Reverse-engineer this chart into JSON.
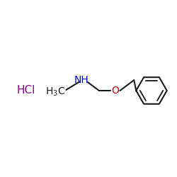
{
  "background_color": "#ffffff",
  "hcl_text": "HCl",
  "hcl_color": "#8B008B",
  "hcl_fontsize": 11,
  "nh_color": "#0000CC",
  "nh_fontsize": 10,
  "o_color": "#CC0000",
  "o_fontsize": 10,
  "chain_color": "#1a1a1a",
  "ring_color": "#1a1a1a",
  "line_width": 1.5,
  "text_fontsize": 10,
  "figsize": [
    2.5,
    2.5
  ],
  "dpi": 100
}
